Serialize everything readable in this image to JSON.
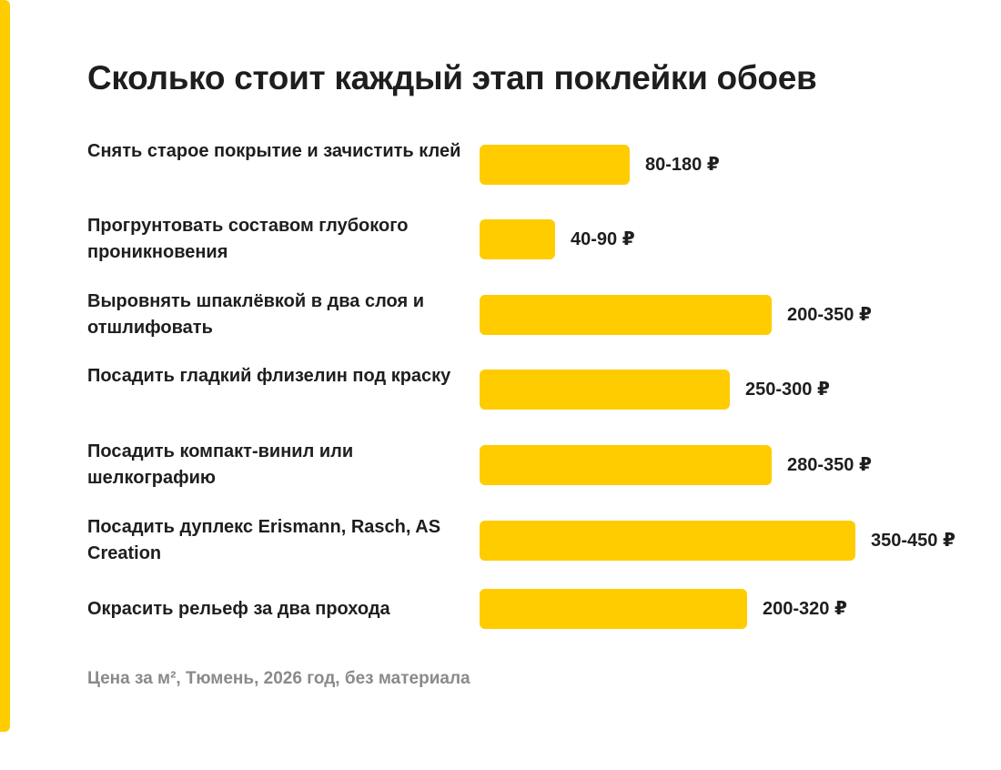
{
  "colors": {
    "accent": "#FFCC00",
    "bar": "#FFCC00",
    "text": "#1E1E1E",
    "muted": "#8A8A8A",
    "background": "#FFFFFF"
  },
  "chart_data": {
    "type": "bar",
    "orientation": "horizontal",
    "title": "Сколько стоит каждый этап поклейки обоев",
    "note": "Цена за м², Тюмень, 2026 год, без материала",
    "unit": "₽",
    "legend": "none",
    "grid": false,
    "xlim": [
      0,
      450
    ],
    "bars": [
      {
        "label": "Снять старое покрытие и зачистить клей",
        "value_label": "80-180 ₽",
        "min": 80,
        "max": 180
      },
      {
        "label": "Прогрунтовать составом глубокого проникновения",
        "value_label": "40-90 ₽",
        "min": 40,
        "max": 90
      },
      {
        "label": "Выровнять шпаклёвкой в два слоя и отшлифовать",
        "value_label": "200-350 ₽",
        "min": 200,
        "max": 350
      },
      {
        "label": "Посадить гладкий флизелин под краску",
        "value_label": "250-300 ₽",
        "min": 250,
        "max": 300
      },
      {
        "label": "Посадить компакт-винил или шелкографию",
        "value_label": "280-350 ₽",
        "min": 280,
        "max": 350
      },
      {
        "label": "Посадить дуплекс Erismann, Rasch, AS Creation",
        "value_label": "350-450 ₽",
        "min": 350,
        "max": 450
      },
      {
        "label": "Окрасить рельеф за два прохода",
        "value_label": "200-320 ₽",
        "min": 200,
        "max": 320
      }
    ]
  }
}
